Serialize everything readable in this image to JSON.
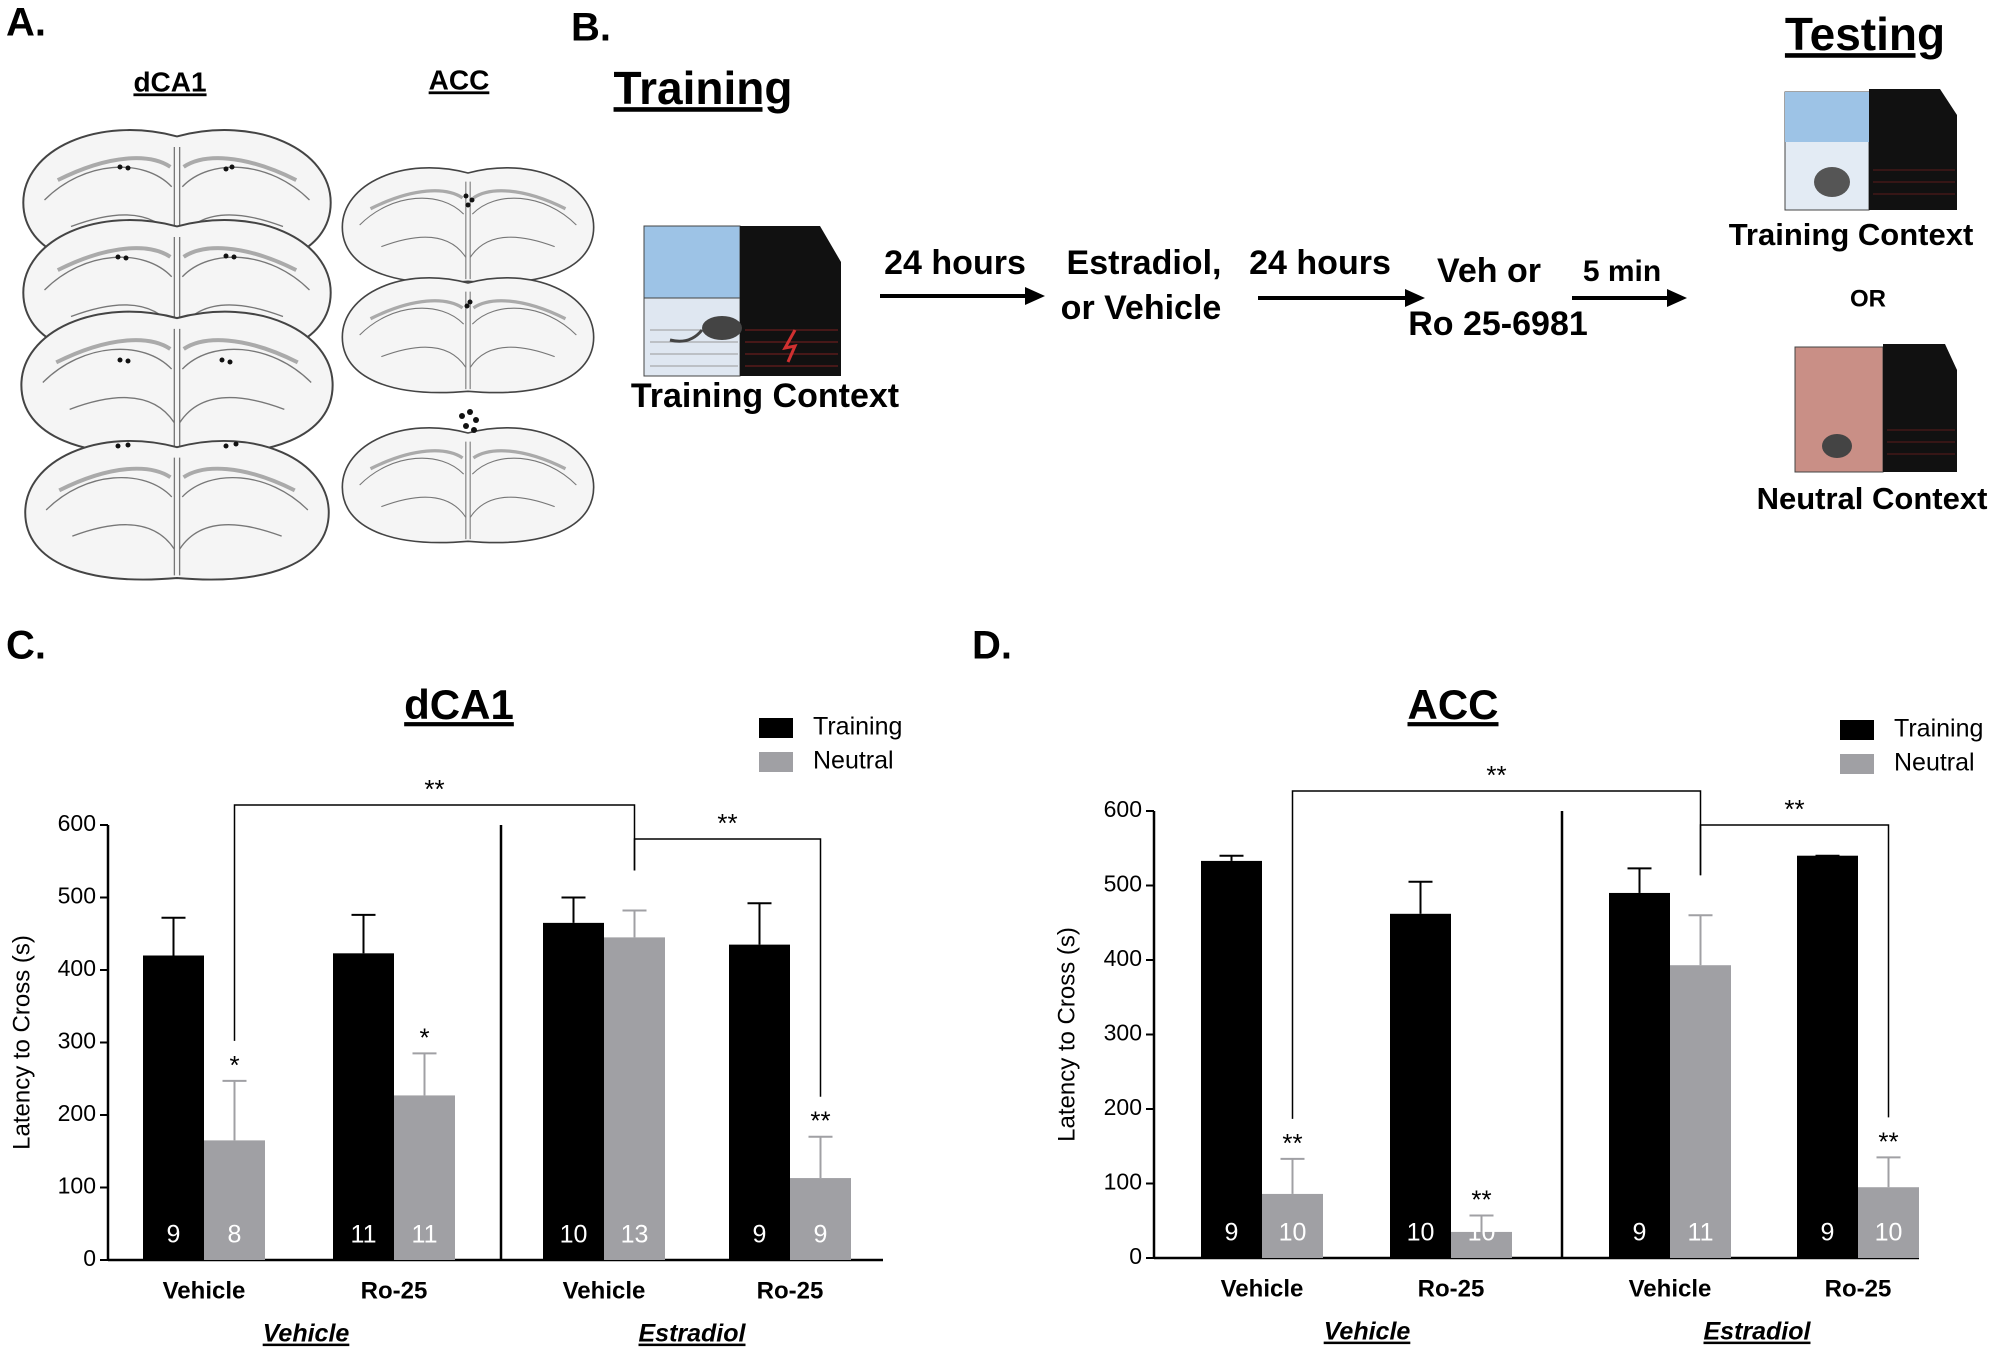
{
  "panel_labels": [
    "A.",
    "B.",
    "C.",
    "D."
  ],
  "panel_a": {
    "regions": [
      "dCA1",
      "ACC"
    ]
  },
  "panel_b": {
    "training_title": "Training",
    "testing_title": "Testing",
    "training_context": "Training Context",
    "steps": [
      {
        "arrow": "24 hours",
        "text": [
          "Estradiol,",
          "or Vehicle"
        ]
      },
      {
        "arrow": "24 hours",
        "text": [
          "Veh or",
          "Ro 25-6981"
        ]
      },
      {
        "arrow": "5 min"
      }
    ],
    "test_contexts": [
      "Training Context",
      "Neutral Context"
    ],
    "or": "OR"
  },
  "chart_data": [
    {
      "type": "bar",
      "title": "dCA1",
      "ylabel": "Latency to Cross (s)",
      "categories": [
        "Vehicle",
        "Ro-25",
        "Vehicle",
        "Ro-25"
      ],
      "groups": [
        "Vehicle",
        "Estradiol"
      ],
      "series": [
        {
          "name": "Training",
          "color": "#000000",
          "values": [
            420,
            423,
            465,
            435
          ],
          "errors": [
            52,
            53,
            35,
            57
          ],
          "n": [
            9,
            11,
            10,
            9
          ]
        },
        {
          "name": "Neutral",
          "color": "#a0a0a4",
          "values": [
            165,
            227,
            445,
            113
          ],
          "errors": [
            82,
            58,
            37,
            57
          ],
          "n": [
            8,
            11,
            13,
            9
          ],
          "significance": [
            "*",
            "*",
            null,
            "**"
          ]
        }
      ],
      "bracket_labels": [
        "**",
        "**"
      ],
      "ylim": [
        0,
        600
      ],
      "yticks": [
        0,
        100,
        200,
        300,
        400,
        500,
        600
      ]
    },
    {
      "type": "bar",
      "title": "ACC",
      "ylabel": "Latency to Cross (s)",
      "categories": [
        "Vehicle",
        "Ro-25",
        "Vehicle",
        "Ro-25"
      ],
      "groups": [
        "Vehicle",
        "Estradiol"
      ],
      "series": [
        {
          "name": "Training",
          "color": "#000000",
          "values": [
            533,
            462,
            490,
            540
          ],
          "errors": [
            7,
            43,
            33,
            0
          ],
          "n": [
            9,
            10,
            9,
            9
          ]
        },
        {
          "name": "Neutral",
          "color": "#a0a0a4",
          "values": [
            86,
            35,
            393,
            95
          ],
          "errors": [
            47,
            22,
            67,
            40
          ],
          "n": [
            10,
            10,
            11,
            10
          ],
          "significance": [
            "**",
            "**",
            null,
            "**"
          ]
        }
      ],
      "bracket_labels": [
        "**",
        "**"
      ],
      "ylim": [
        0,
        600
      ],
      "yticks": [
        0,
        100,
        200,
        300,
        400,
        500,
        600
      ]
    }
  ]
}
